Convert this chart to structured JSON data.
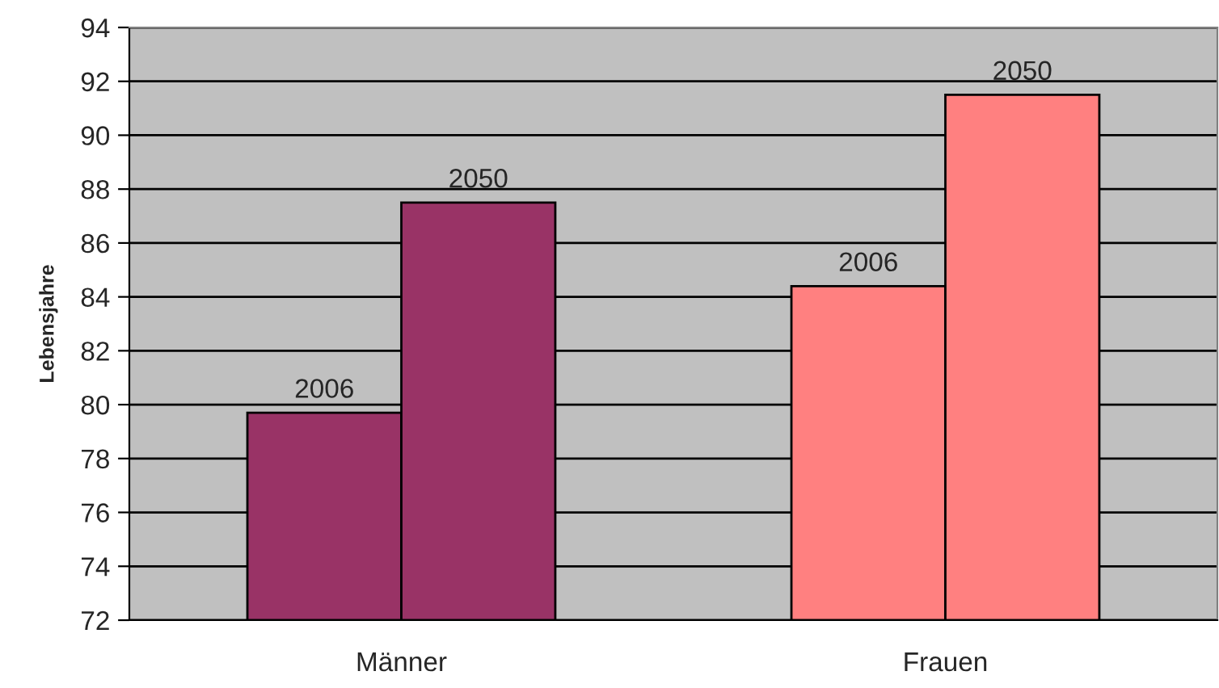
{
  "chart_data": {
    "type": "bar",
    "ylabel": "Lebensjahre",
    "categories": [
      "Männer",
      "Frauen"
    ],
    "series": [
      {
        "name": "2006",
        "colors": [
          "#993366",
          "#ff8080"
        ],
        "values": [
          79.7,
          84.4
        ]
      },
      {
        "name": "2050",
        "colors": [
          "#993366",
          "#ff8080"
        ],
        "values": [
          87.5,
          91.5
        ]
      }
    ],
    "ylim": [
      72,
      94
    ],
    "yticks": [
      72,
      74,
      76,
      78,
      80,
      82,
      84,
      86,
      88,
      90,
      92,
      94
    ],
    "grid": "y",
    "legend": false
  }
}
